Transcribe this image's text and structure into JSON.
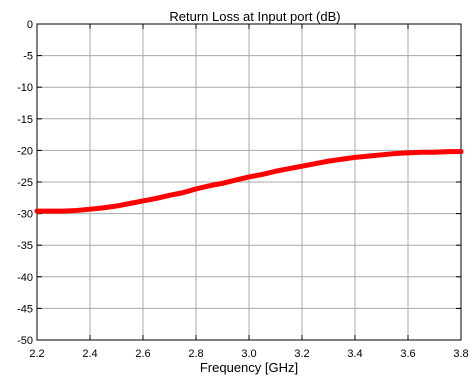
{
  "chart_data": {
    "type": "line",
    "title": "Return Loss at Input port (dB)",
    "xlabel": "Frequency [GHz]",
    "ylabel": "",
    "xlim": [
      2.2,
      3.8
    ],
    "ylim": [
      -50,
      0
    ],
    "xticks": [
      "2.2",
      "2.4",
      "2.6",
      "2.8",
      "3.0",
      "3.2",
      "3.4",
      "3.6",
      "3.8"
    ],
    "yticks": [
      "0",
      "-5",
      "-10",
      "-15",
      "-20",
      "-25",
      "-30",
      "-35",
      "-40",
      "-45",
      "-50"
    ],
    "grid": true,
    "series": [
      {
        "color": "#ff0000",
        "x": [
          2.2,
          2.25,
          2.3,
          2.35,
          2.4,
          2.45,
          2.5,
          2.55,
          2.6,
          2.65,
          2.7,
          2.75,
          2.8,
          2.85,
          2.9,
          2.95,
          3.0,
          3.05,
          3.1,
          3.15,
          3.2,
          3.25,
          3.3,
          3.35,
          3.4,
          3.45,
          3.5,
          3.55,
          3.6,
          3.65,
          3.7,
          3.75,
          3.8
        ],
        "y": [
          -29.6,
          -29.6,
          -29.6,
          -29.5,
          -29.3,
          -29.1,
          -28.8,
          -28.4,
          -28.0,
          -27.6,
          -27.1,
          -26.7,
          -26.1,
          -25.6,
          -25.2,
          -24.7,
          -24.2,
          -23.8,
          -23.3,
          -22.9,
          -22.5,
          -22.1,
          -21.7,
          -21.4,
          -21.1,
          -20.9,
          -20.7,
          -20.5,
          -20.4,
          -20.3,
          -20.3,
          -20.2,
          -20.2
        ]
      }
    ]
  }
}
